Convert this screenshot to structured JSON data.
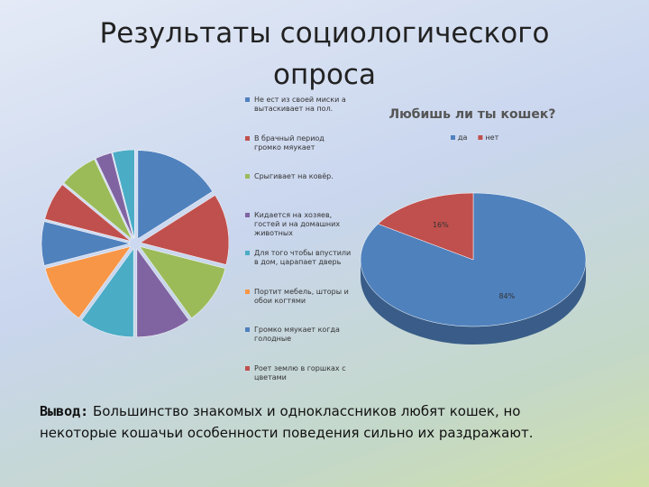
{
  "title": {
    "lines": [
      "Результаты социологического",
      "опроса"
    ]
  },
  "chart_data": [
    {
      "type": "pie",
      "categories": [
        "Не ест из своей миски а вытаскивает на пол.",
        "В брачный период громко мяукает",
        "Срыгивает на ковёр.",
        "Кидается на хозяев, гостей и на домашних животных",
        "Для того чтобы впустили в дом, царапает дверь",
        "Портит мебель, шторы и обои когтями",
        "Громко мяукает когда голодные",
        "Роет землю в горшках с цветами",
        null,
        null,
        null
      ],
      "values": [
        16,
        13,
        11,
        10,
        10,
        11,
        8,
        7,
        7,
        3,
        4
      ],
      "colors": [
        "#4f81bd",
        "#c0504d",
        "#9bbb59",
        "#8064a2",
        "#4bacc6",
        "#f79646",
        "#4f81bd",
        "#c0504d",
        "#9bbb59",
        "#8064a2",
        "#4bacc6"
      ]
    },
    {
      "type": "pie3d",
      "title": "Любишь ли ты кошек?",
      "categories": [
        "да",
        "нет"
      ],
      "values": [
        84,
        16
      ],
      "value_labels": [
        "84%",
        "16%"
      ],
      "colors": [
        "#4f81bd",
        "#c0504d"
      ],
      "legend": "top"
    }
  ],
  "conclusion": {
    "label": "Вывод:",
    "lines": [
      "Большинство знакомых и одноклассников любят кошек, но",
      "некоторые кошачьи особенности поведения сильно их раздражают."
    ]
  }
}
